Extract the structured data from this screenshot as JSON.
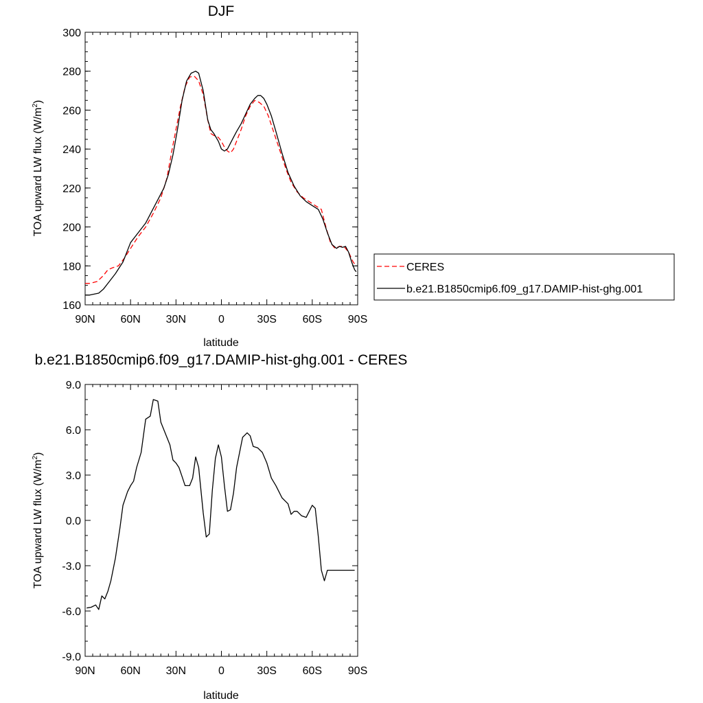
{
  "chart_data": [
    {
      "type": "line",
      "title": "DJF",
      "xlabel": "latitude",
      "ylabel_main": "TOA upward LW flux (W/m",
      "ylabel_sup": "2",
      "ylabel_close": ")",
      "xlim": [
        90,
        -90
      ],
      "ylim": [
        160,
        300
      ],
      "x_ticks": [
        90,
        60,
        30,
        0,
        -30,
        -60,
        -90
      ],
      "x_tick_labels": [
        "90N",
        "60N",
        "30N",
        "0",
        "30S",
        "60S",
        "90S"
      ],
      "y_ticks": [
        160,
        180,
        200,
        220,
        240,
        260,
        280,
        300
      ],
      "y_tick_labels": [
        "160",
        "180",
        "200",
        "220",
        "240",
        "260",
        "280",
        "300"
      ],
      "grid": false,
      "legend": "right",
      "series": [
        {
          "name": "CERES",
          "color": "#ff0000",
          "dash": true,
          "x": [
            90,
            87,
            82,
            78,
            75,
            72,
            68,
            64,
            60,
            55,
            50,
            45,
            40,
            36,
            33,
            30,
            27,
            24,
            21,
            18,
            15,
            12,
            9,
            7,
            5,
            2,
            0,
            -2,
            -4,
            -6,
            -8,
            -10,
            -13,
            -16,
            -19,
            -22,
            -25,
            -28,
            -31,
            -34,
            -37,
            -40,
            -43,
            -46,
            -50,
            -54,
            -58,
            -62,
            -66,
            -69,
            -72,
            -75,
            -78,
            -81,
            -84,
            -87,
            -89
          ],
          "y": [
            171,
            171,
            172,
            175,
            178,
            179,
            180,
            184,
            189,
            195,
            200,
            207,
            215,
            225,
            238,
            250,
            262,
            272,
            277,
            277.5,
            275,
            268,
            255,
            248,
            247,
            246,
            244,
            241,
            239,
            238,
            240,
            244,
            250,
            257,
            262,
            265,
            264,
            262,
            257,
            250,
            243,
            236,
            229,
            223,
            218,
            215,
            213,
            211,
            209,
            200,
            192,
            189,
            190,
            190,
            187,
            182,
            180
          ]
        },
        {
          "name": "b.e21.B1850cmip6.f09_g17.DAMIP-hist-ghg.001",
          "color": "#000000",
          "dash": false,
          "x": [
            90,
            87,
            84,
            81,
            78,
            74,
            70,
            65,
            60,
            55,
            50,
            46,
            42,
            38,
            35,
            32,
            29,
            26,
            23,
            20,
            17,
            15,
            12,
            9,
            7,
            5,
            2,
            0,
            -2,
            -4,
            -6,
            -8,
            -10,
            -13,
            -16,
            -19,
            -22,
            -24,
            -26,
            -28,
            -30,
            -33,
            -36,
            -40,
            -44,
            -48,
            -52,
            -56,
            -60,
            -64,
            -67,
            -70,
            -73,
            -76,
            -78,
            -80,
            -82,
            -84,
            -86,
            -88,
            -89
          ],
          "y": [
            165,
            165,
            165.5,
            166,
            168,
            172,
            176,
            182,
            192,
            197,
            202,
            208,
            214,
            220,
            227,
            237,
            250,
            265,
            275,
            279,
            280,
            279,
            270,
            255,
            250,
            248,
            244,
            240,
            239,
            240,
            243,
            246,
            249,
            253,
            258,
            263,
            266,
            267.5,
            267.5,
            266,
            263,
            257,
            249,
            238,
            228,
            221,
            216,
            213,
            211,
            209,
            204,
            197,
            191,
            189,
            190,
            189.5,
            190,
            187,
            182,
            178,
            177
          ]
        }
      ]
    },
    {
      "type": "line",
      "title": "b.e21.B1850cmip6.f09_g17.DAMIP-hist-ghg.001 - CERES",
      "xlabel": "latitude",
      "ylabel_main": "TOA upward LW flux (W/m",
      "ylabel_sup": "2",
      "ylabel_close": ")",
      "xlim": [
        90,
        -90
      ],
      "ylim": [
        -9,
        9
      ],
      "x_ticks": [
        90,
        60,
        30,
        0,
        -30,
        -60,
        -90
      ],
      "x_tick_labels": [
        "90N",
        "60N",
        "30N",
        "0",
        "30S",
        "60S",
        "90S"
      ],
      "y_ticks": [
        -9,
        -6,
        -3,
        0,
        3,
        6,
        9
      ],
      "y_tick_labels": [
        "-9.0",
        "-6.0",
        "-3.0",
        "0.0",
        "3.0",
        "6.0",
        "9.0"
      ],
      "grid": false,
      "series": [
        {
          "color": "#000000",
          "dash": false,
          "x": [
            89,
            86,
            83,
            81,
            79,
            77,
            75,
            73,
            70,
            67,
            65,
            62,
            60,
            58,
            56,
            53,
            50,
            47,
            45,
            42,
            40,
            38,
            36,
            34,
            32,
            30,
            28,
            26,
            24,
            21,
            19,
            17,
            15,
            12,
            10,
            8,
            6,
            4,
            2,
            0,
            -2,
            -4,
            -6,
            -8,
            -10,
            -12,
            -14,
            -17,
            -19,
            -21,
            -24,
            -27,
            -30,
            -33,
            -36,
            -38,
            -40,
            -42,
            -44,
            -46,
            -48,
            -50,
            -53,
            -56,
            -58,
            -60,
            -62,
            -64,
            -66,
            -68,
            -70,
            -72,
            -74,
            -76,
            -78,
            -80,
            -82,
            -84,
            -86,
            -88
          ],
          "y": [
            -5.8,
            -5.75,
            -5.6,
            -5.9,
            -5.0,
            -5.2,
            -4.7,
            -4.0,
            -2.5,
            -0.5,
            1.0,
            1.9,
            2.3,
            2.6,
            3.5,
            4.5,
            6.7,
            6.9,
            8.0,
            7.9,
            6.5,
            6.0,
            5.5,
            5.0,
            4.0,
            3.8,
            3.5,
            2.9,
            2.3,
            2.3,
            2.8,
            4.2,
            3.5,
            0.5,
            -1.1,
            -0.9,
            2.0,
            4.1,
            5.0,
            4.2,
            2.3,
            0.6,
            0.7,
            1.8,
            3.5,
            4.5,
            5.5,
            5.8,
            5.6,
            4.9,
            4.8,
            4.5,
            3.8,
            2.8,
            2.3,
            1.9,
            1.5,
            1.3,
            1.1,
            0.4,
            0.6,
            0.6,
            0.3,
            0.2,
            0.6,
            1.0,
            0.8,
            -1.1,
            -3.3,
            -4.0,
            -3.3,
            -3.3,
            -3.3,
            -3.3,
            -3.3,
            -3.3,
            -3.3,
            -3.3,
            -3.3,
            -3.3
          ]
        }
      ]
    }
  ]
}
